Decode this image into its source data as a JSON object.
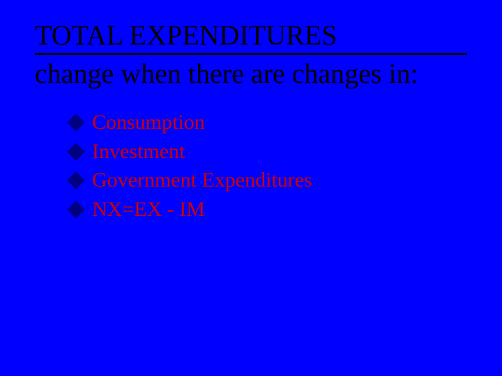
{
  "slide": {
    "background_color": "#0000ff",
    "title_line1": "TOTAL EXPENDITURES",
    "subtitle": "change when there are changes in:",
    "title_color": "#000000",
    "title_fontsize": 40,
    "underline_color": "#000000",
    "bullets": [
      {
        "label": "Consumption"
      },
      {
        "label": "Investment"
      },
      {
        "label": "Government Expenditures"
      },
      {
        "label": "NX=EX - IM"
      }
    ],
    "bullet_color": "#cc0000",
    "bullet_icon_color": "#000080",
    "bullet_fontsize": 30
  }
}
